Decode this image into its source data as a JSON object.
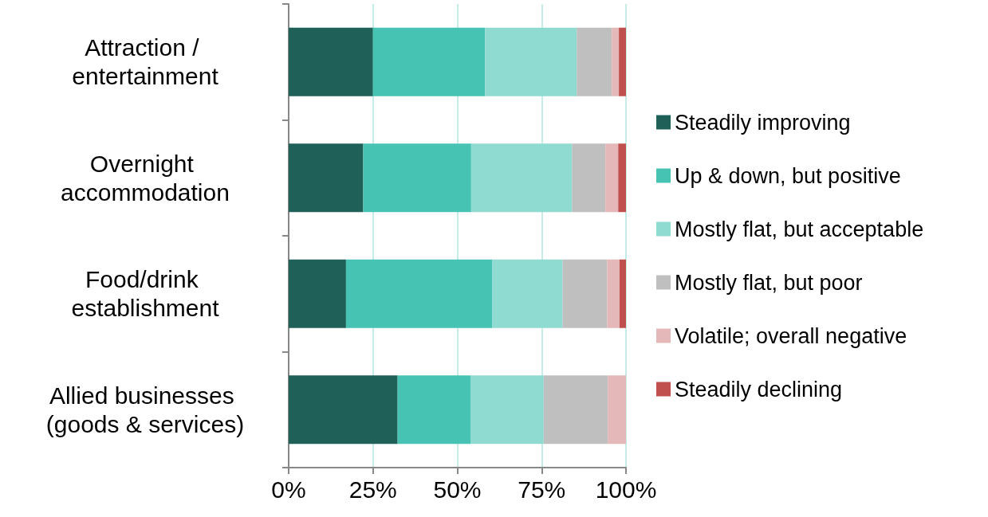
{
  "chart_data": {
    "type": "bar",
    "orientation": "horizontal",
    "stacked": true,
    "categories": [
      "Attraction / entertainment",
      "Overnight accommodation",
      "Food/drink establishment",
      "Allied businesses (goods & services)"
    ],
    "series": [
      {
        "name": "Steadily improving",
        "color": "#1f6158",
        "values": [
          25.0,
          22.1,
          17.0,
          32.3
        ]
      },
      {
        "name": "Up & down, but positive",
        "color": "#47c3b4",
        "values": [
          33.2,
          32.0,
          43.3,
          21.6
        ]
      },
      {
        "name": "Mostly flat, but acceptable",
        "color": "#8fdbd1",
        "values": [
          27.2,
          29.9,
          20.9,
          21.7
        ]
      },
      {
        "name": "Mostly flat, but poor",
        "color": "#bfbfbf",
        "values": [
          10.4,
          9.9,
          13.2,
          19.0
        ]
      },
      {
        "name": "Volatile; overall negative",
        "color": "#e4b8b8",
        "values": [
          2.1,
          3.8,
          3.7,
          5.4
        ]
      },
      {
        "name": "Steadily declining",
        "color": "#c0504d",
        "values": [
          2.1,
          2.3,
          1.9,
          null
        ]
      }
    ],
    "xlim": [
      0,
      100
    ],
    "xticks": [
      {
        "value": 0,
        "label": "0%"
      },
      {
        "value": 25,
        "label": "25%"
      },
      {
        "value": 50,
        "label": "50%"
      },
      {
        "value": 75,
        "label": "75%"
      },
      {
        "value": 100,
        "label": "100%"
      }
    ],
    "grid": "x",
    "legend": "right"
  }
}
